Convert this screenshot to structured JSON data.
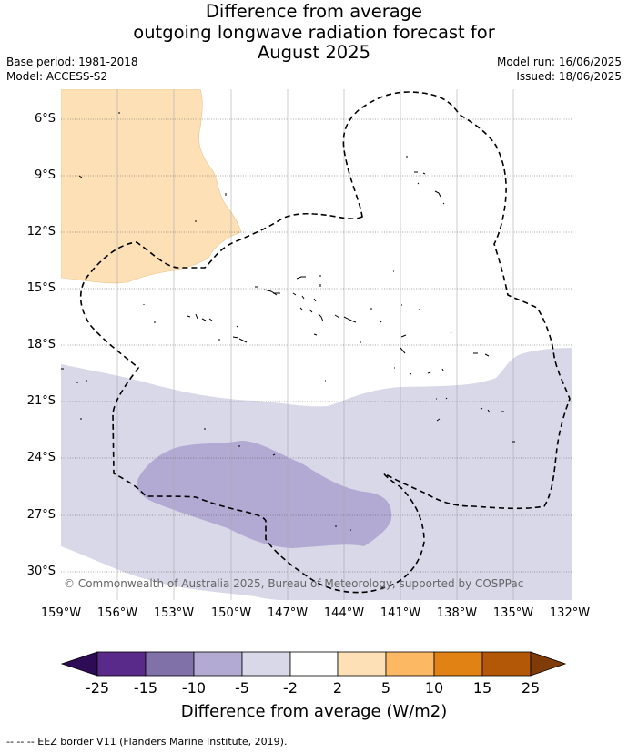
{
  "title_lines": [
    "Difference from average",
    "outgoing longwave radiation forecast for",
    "August 2025"
  ],
  "meta_left": [
    "Base period: 1981-2018",
    "Model: ACCESS-S2"
  ],
  "meta_right": [
    "Model run: 16/06/2025",
    "Issued: 18/06/2025"
  ],
  "lat_labels": [
    "6°S",
    "9°S",
    "12°S",
    "15°S",
    "18°S",
    "21°S",
    "24°S",
    "27°S",
    "30°S"
  ],
  "lon_labels": [
    "159°W",
    "156°W",
    "153°W",
    "150°W",
    "147°W",
    "144°W",
    "141°W",
    "138°W",
    "135°W",
    "132°W"
  ],
  "copyright": "© Commonwealth of Australia 2025, Bureau of Meteorology, supported by COSPPac",
  "colorbar": {
    "labels": [
      "-25",
      "-15",
      "-10",
      "-5",
      "-2",
      "2",
      "5",
      "10",
      "15",
      "25"
    ],
    "colors": [
      "#2e0c55",
      "#5a2a8a",
      "#8071a8",
      "#b2aad2",
      "#d8d8e8",
      "#ffffff",
      "#fde0b6",
      "#fdb863",
      "#e08214",
      "#b35806",
      "#7f3b08"
    ],
    "title": "Difference from average (W/m2)"
  },
  "footer": "--  --  -- EEZ border V11 (Flanders Marine Institute, 2019)."
}
